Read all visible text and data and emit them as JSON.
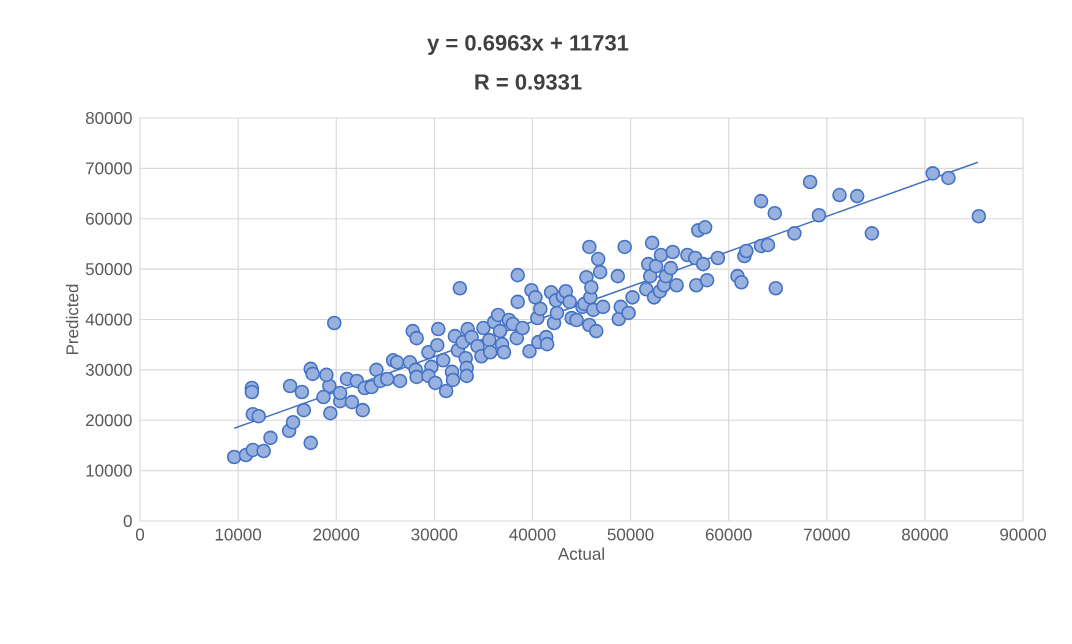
{
  "chart_data": {
    "type": "scatter",
    "title": "y = 0.6963x + 11731",
    "subtitle": "R = 0.9331",
    "xlabel": "Actual",
    "ylabel": "Predicted",
    "xlim": [
      0,
      90000
    ],
    "ylim": [
      0,
      80000
    ],
    "xticks": [
      0,
      10000,
      20000,
      30000,
      40000,
      50000,
      60000,
      70000,
      80000,
      90000
    ],
    "yticks": [
      0,
      10000,
      20000,
      30000,
      40000,
      50000,
      60000,
      70000,
      80000
    ],
    "grid": true,
    "marker": "circle",
    "series": [
      {
        "color": "#4472c4",
        "x": [
          9600,
          10800,
          11500,
          12600,
          13300,
          15200,
          15600,
          17400,
          16700,
          11400,
          11400,
          11500,
          12100,
          15300,
          16500,
          17400,
          17600,
          19800,
          19300,
          19000,
          18700,
          19400,
          20400,
          20400,
          21100,
          21600,
          22100,
          22700,
          22900,
          23600,
          24100,
          24500,
          25200,
          25800,
          26200,
          26500,
          27500,
          27800,
          28200,
          28100,
          28200,
          29400,
          29700,
          29400,
          30100,
          30400,
          30300,
          30900,
          31200,
          31800,
          31900,
          32100,
          32400,
          32600,
          32900,
          33200,
          33400,
          33300,
          33300,
          33800,
          34400,
          34800,
          35000,
          35600,
          35700,
          36100,
          36500,
          36700,
          36900,
          37100,
          37600,
          38000,
          38500,
          38500,
          38400,
          39000,
          39700,
          39900,
          40300,
          40500,
          40600,
          40800,
          41400,
          41500,
          41900,
          42200,
          42400,
          42500,
          43100,
          43400,
          43800,
          44000,
          44500,
          45100,
          45300,
          45500,
          45800,
          45900,
          45800,
          46000,
          46200,
          46500,
          46700,
          46900,
          47200,
          48700,
          48800,
          49000,
          49400,
          49800,
          50200,
          51600,
          51800,
          52000,
          52200,
          52400,
          52600,
          53000,
          53100,
          53400,
          53600,
          54100,
          54300,
          54700,
          55800,
          56600,
          56700,
          56900,
          57400,
          57600,
          57800,
          58900,
          60900,
          61300,
          61600,
          61800,
          63300,
          63300,
          64000,
          64700,
          64800,
          66700,
          68300,
          69200,
          71300,
          73100,
          74600,
          80800,
          82400,
          85500
        ],
        "values": [
          12700,
          13100,
          14100,
          13900,
          16500,
          17900,
          19600,
          15500,
          22000,
          26400,
          25600,
          21200,
          20800,
          26800,
          25600,
          30200,
          29200,
          39300,
          26800,
          29000,
          24600,
          21400,
          23800,
          25400,
          28200,
          23600,
          27800,
          22000,
          26400,
          26600,
          30000,
          27800,
          28200,
          31900,
          31500,
          27800,
          31500,
          37700,
          36300,
          30000,
          28600,
          33500,
          30600,
          28800,
          27400,
          38100,
          34900,
          31900,
          25800,
          29600,
          28000,
          36700,
          33900,
          46200,
          35500,
          32300,
          38100,
          30400,
          28800,
          36500,
          34700,
          32700,
          38300,
          35900,
          33500,
          39500,
          40900,
          37700,
          35100,
          33500,
          39900,
          39100,
          48800,
          43500,
          36300,
          38300,
          33700,
          45800,
          44400,
          40300,
          35500,
          42100,
          36500,
          35100,
          45400,
          39300,
          43800,
          41300,
          44600,
          45600,
          43500,
          40300,
          39900,
          42500,
          43100,
          48400,
          54400,
          44400,
          38900,
          46400,
          41900,
          37700,
          52000,
          49400,
          42500,
          48600,
          40100,
          42500,
          54400,
          41300,
          44400,
          46000,
          51000,
          48600,
          55200,
          44400,
          50600,
          45600,
          52800,
          46800,
          48600,
          50200,
          53400,
          46800,
          52800,
          52200,
          46800,
          57700,
          51000,
          58300,
          47800,
          52200,
          48600,
          47400,
          52600,
          53600,
          54600,
          63500,
          54800,
          61100,
          46200,
          57100,
          67300,
          60700,
          64700,
          64500,
          57100,
          69000,
          68100,
          60500
        ]
      },
      {
        "type": "line",
        "color": "#4472c4",
        "marker": "none",
        "x": [
          9600,
          85400
        ],
        "values": [
          18400,
          71200
        ]
      }
    ]
  }
}
